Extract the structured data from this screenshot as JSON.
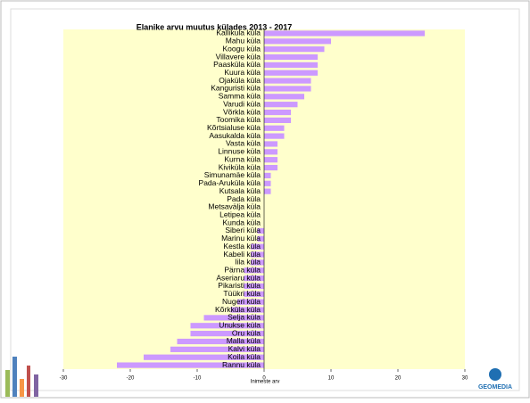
{
  "chart_data": {
    "type": "barh",
    "title": "Elanike arvu muutus külades 2013 - 2017",
    "x_label": "Inimeste arv",
    "categories": [
      "Kallikula küla",
      "Mahu küla",
      "Koogu küla",
      "Villavere küla",
      "Paasküla küla",
      "Kuura küla",
      "Ojaküla küla",
      "Kanguristi küla",
      "Samma küla",
      "Varudi küla",
      "Võrkla küla",
      "Toomika küla",
      "Kõrtsialuse küla",
      "Aasukalda küla",
      "Vasta küla",
      "Linnuse küla",
      "Kurna küla",
      "Kiviküla küla",
      "Simunamäe küla",
      "Pada-Aruküla küla",
      "Kutsala küla",
      "Pada küla",
      "Metsavälja küla",
      "Letipea küla",
      "Kunda küla",
      "Siberi küla",
      "Marinu küla",
      "Kestla küla",
      "Kabeli küla",
      "Iila küla",
      "Pärna küla",
      "Aseriaru küla",
      "Pikaristi küla",
      "Tüükri küla",
      "Nugeri küla",
      "Kõrkküla küla",
      "Selja küla",
      "Unukse küla",
      "Oru küla",
      "Malla küla",
      "Kalvi küla",
      "Koila küla",
      "Rannu küla"
    ],
    "values": [
      24,
      10,
      9,
      8,
      8,
      8,
      7,
      7,
      6,
      5,
      4,
      4,
      3,
      3,
      2,
      2,
      2,
      2,
      1,
      1,
      1,
      0,
      0,
      0,
      0,
      -1,
      -1,
      -2,
      -2,
      -2,
      -3,
      -3,
      -3,
      -3,
      -4,
      -5,
      -9,
      -11,
      -11,
      -13,
      -14,
      -18,
      -22
    ],
    "color": "#cc99ff",
    "xlim": [
      -30,
      30
    ],
    "xticks": [
      -30,
      -20,
      -10,
      0,
      10,
      20,
      30
    ],
    "background": "#ffffcc"
  },
  "logo_text": "GEOMEDIA"
}
